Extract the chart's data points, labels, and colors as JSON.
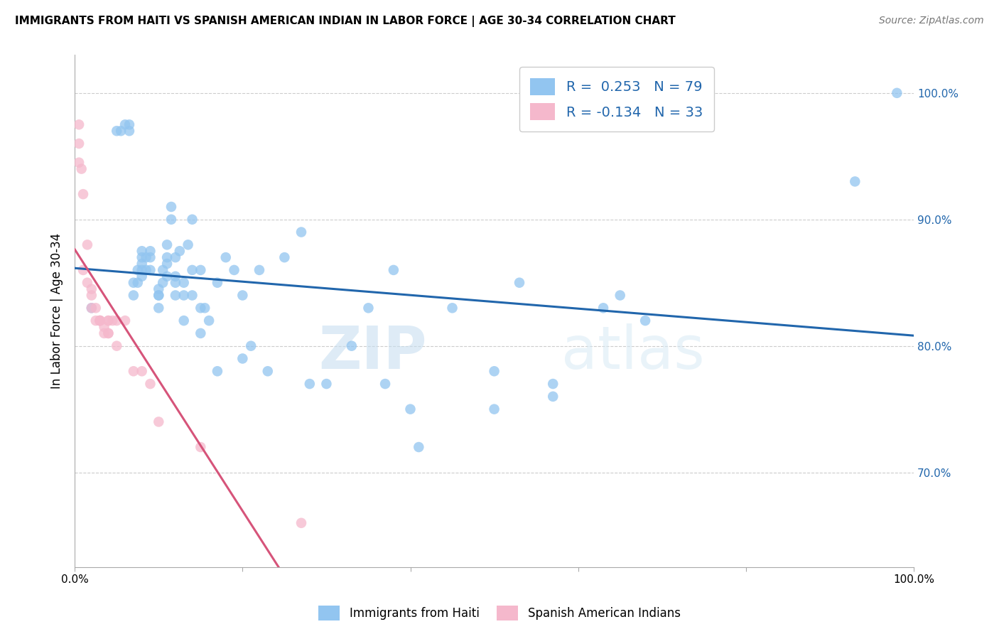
{
  "title": "IMMIGRANTS FROM HAITI VS SPANISH AMERICAN INDIAN IN LABOR FORCE | AGE 30-34 CORRELATION CHART",
  "source": "Source: ZipAtlas.com",
  "ylabel": "In Labor Force | Age 30-34",
  "xmin": 0.0,
  "xmax": 1.0,
  "ymin": 0.625,
  "ymax": 1.03,
  "yticks": [
    0.7,
    0.8,
    0.9,
    1.0
  ],
  "ytick_labels": [
    "70.0%",
    "80.0%",
    "90.0%",
    "100.0%"
  ],
  "xticks": [
    0.0,
    0.2,
    0.4,
    0.6,
    0.8,
    1.0
  ],
  "xtick_labels": [
    "0.0%",
    "",
    "",
    "",
    "",
    "100.0%"
  ],
  "haiti_R": 0.253,
  "haiti_N": 79,
  "spanish_R": -0.134,
  "spanish_N": 33,
  "haiti_color": "#92C5F0",
  "spanish_color": "#F5B8CC",
  "haiti_line_color": "#2166AC",
  "spanish_line_color": "#D6547A",
  "spanish_dash_color": "#F0C0D0",
  "watermark_zip": "ZIP",
  "watermark_atlas": "atlas",
  "legend_label_haiti": "Immigrants from Haiti",
  "legend_label_spanish": "Spanish American Indians",
  "haiti_x": [
    0.02,
    0.05,
    0.055,
    0.06,
    0.065,
    0.065,
    0.07,
    0.07,
    0.075,
    0.075,
    0.08,
    0.08,
    0.08,
    0.08,
    0.08,
    0.085,
    0.085,
    0.09,
    0.09,
    0.09,
    0.1,
    0.1,
    0.1,
    0.1,
    0.105,
    0.105,
    0.11,
    0.11,
    0.11,
    0.11,
    0.115,
    0.115,
    0.12,
    0.12,
    0.12,
    0.12,
    0.125,
    0.13,
    0.13,
    0.13,
    0.135,
    0.14,
    0.14,
    0.14,
    0.15,
    0.15,
    0.15,
    0.155,
    0.16,
    0.17,
    0.17,
    0.18,
    0.19,
    0.2,
    0.2,
    0.21,
    0.22,
    0.23,
    0.25,
    0.27,
    0.28,
    0.3,
    0.33,
    0.35,
    0.37,
    0.38,
    0.4,
    0.41,
    0.45,
    0.5,
    0.5,
    0.53,
    0.57,
    0.57,
    0.63,
    0.65,
    0.68,
    0.93,
    0.98
  ],
  "haiti_y": [
    0.83,
    0.97,
    0.97,
    0.975,
    0.97,
    0.975,
    0.84,
    0.85,
    0.85,
    0.86,
    0.855,
    0.86,
    0.865,
    0.87,
    0.875,
    0.86,
    0.87,
    0.86,
    0.87,
    0.875,
    0.83,
    0.84,
    0.84,
    0.845,
    0.85,
    0.86,
    0.855,
    0.865,
    0.87,
    0.88,
    0.9,
    0.91,
    0.84,
    0.85,
    0.855,
    0.87,
    0.875,
    0.82,
    0.84,
    0.85,
    0.88,
    0.84,
    0.86,
    0.9,
    0.81,
    0.83,
    0.86,
    0.83,
    0.82,
    0.78,
    0.85,
    0.87,
    0.86,
    0.79,
    0.84,
    0.8,
    0.86,
    0.78,
    0.87,
    0.89,
    0.77,
    0.77,
    0.8,
    0.83,
    0.77,
    0.86,
    0.75,
    0.72,
    0.83,
    0.75,
    0.78,
    0.85,
    0.76,
    0.77,
    0.83,
    0.84,
    0.82,
    0.93,
    1.0
  ],
  "spanish_x": [
    0.005,
    0.005,
    0.005,
    0.008,
    0.01,
    0.01,
    0.015,
    0.015,
    0.02,
    0.02,
    0.02,
    0.025,
    0.025,
    0.03,
    0.03,
    0.03,
    0.03,
    0.035,
    0.035,
    0.04,
    0.04,
    0.04,
    0.04,
    0.045,
    0.05,
    0.05,
    0.06,
    0.07,
    0.08,
    0.09,
    0.1,
    0.15,
    0.27
  ],
  "spanish_y": [
    0.975,
    0.96,
    0.945,
    0.94,
    0.92,
    0.86,
    0.88,
    0.85,
    0.845,
    0.84,
    0.83,
    0.83,
    0.82,
    0.82,
    0.82,
    0.82,
    0.82,
    0.815,
    0.81,
    0.81,
    0.81,
    0.82,
    0.82,
    0.82,
    0.82,
    0.8,
    0.82,
    0.78,
    0.78,
    0.77,
    0.74,
    0.72,
    0.66
  ]
}
